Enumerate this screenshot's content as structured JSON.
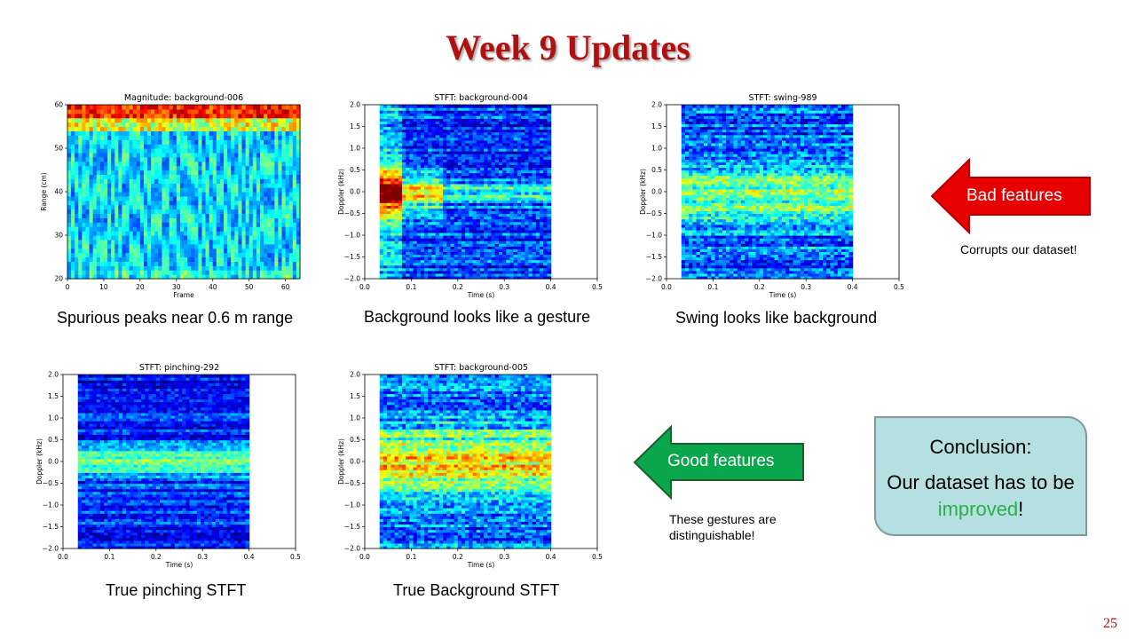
{
  "slide": {
    "title": "Week 9 Updates",
    "page_number": "25"
  },
  "captions": {
    "plot1": "Spurious peaks near 0.6 m range",
    "plot2": "Background looks like a gesture",
    "plot3": "Swing looks like background",
    "plot4": "True pinching STFT",
    "plot5": "True Background STFT"
  },
  "callouts": {
    "bad_label": "Bad features",
    "bad_note": "Corrupts our dataset!",
    "good_label": "Good features",
    "good_note": "These gestures are distinguishable!"
  },
  "conclusion": {
    "heading": "Conclusion:",
    "text_before": "Our dataset has to be ",
    "highlight": "improved",
    "text_after": "!"
  },
  "colors": {
    "title": "#b01010",
    "bad_arrow": "#e60000",
    "good_arrow": "#0aa64c",
    "highlight": "#2ab04a"
  },
  "chart_data": [
    {
      "type": "heatmap",
      "title": "Magnitude: background-006",
      "xlabel": "Frame",
      "ylabel": "Range (cm)",
      "xlim": [
        0,
        64
      ],
      "ylim": [
        20,
        60
      ],
      "xticks": [
        "0",
        "10",
        "20",
        "30",
        "40",
        "50",
        "60"
      ],
      "yticks": [
        "20",
        "30",
        "40",
        "50",
        "60"
      ],
      "data_x": [
        0,
        64
      ],
      "colormap": "jet",
      "pattern": "range"
    },
    {
      "type": "heatmap",
      "title": "STFT: background-004",
      "xlabel": "Time (s)",
      "ylabel": "Doppler (kHz)",
      "xlim": [
        0.0,
        0.5
      ],
      "ylim": [
        -2.0,
        2.0
      ],
      "xticks": [
        "0.0",
        "0.1",
        "0.2",
        "0.3",
        "0.4",
        "0.5"
      ],
      "yticks": [
        "−2.0",
        "−1.5",
        "−1.0",
        "−0.5",
        "0.0",
        "0.5",
        "1.0",
        "1.5",
        "2.0"
      ],
      "data_x": [
        0.032,
        0.4
      ],
      "colormap": "jet",
      "pattern": "bg-burst"
    },
    {
      "type": "heatmap",
      "title": "STFT: swing-989",
      "xlabel": "Time (s)",
      "ylabel": "Doppler (kHz)",
      "xlim": [
        0.0,
        0.5
      ],
      "ylim": [
        -2.0,
        2.0
      ],
      "xticks": [
        "0.0",
        "0.1",
        "0.2",
        "0.3",
        "0.4",
        "0.5"
      ],
      "yticks": [
        "−2.0",
        "−1.5",
        "−1.0",
        "−0.5",
        "0.0",
        "0.5",
        "1.0",
        "1.5",
        "2.0"
      ],
      "data_x": [
        0.032,
        0.4
      ],
      "colormap": "jet",
      "pattern": "spread"
    },
    {
      "type": "heatmap",
      "title": "STFT: pinching-292",
      "xlabel": "Time (s)",
      "ylabel": "Doppler (kHz)",
      "xlim": [
        0.0,
        0.5
      ],
      "ylim": [
        -2.0,
        2.0
      ],
      "xticks": [
        "0.0",
        "0.1",
        "0.2",
        "0.3",
        "0.4",
        "0.5"
      ],
      "yticks": [
        "−2.0",
        "−1.5",
        "−1.0",
        "−0.5",
        "0.0",
        "0.5",
        "1.0",
        "1.5",
        "2.0"
      ],
      "data_x": [
        0.032,
        0.4
      ],
      "colormap": "jet",
      "pattern": "narrow"
    },
    {
      "type": "heatmap",
      "title": "STFT: background-005",
      "xlabel": "Time (s)",
      "ylabel": "Doppler (kHz)",
      "xlim": [
        0.0,
        0.5
      ],
      "ylim": [
        -2.0,
        2.0
      ],
      "xticks": [
        "0.0",
        "0.1",
        "0.2",
        "0.3",
        "0.4",
        "0.5"
      ],
      "yticks": [
        "−2.0",
        "−1.5",
        "−1.0",
        "−0.5",
        "0.0",
        "0.5",
        "1.0",
        "1.5",
        "2.0"
      ],
      "data_x": [
        0.032,
        0.4
      ],
      "colormap": "jet",
      "pattern": "spread-strong"
    }
  ]
}
